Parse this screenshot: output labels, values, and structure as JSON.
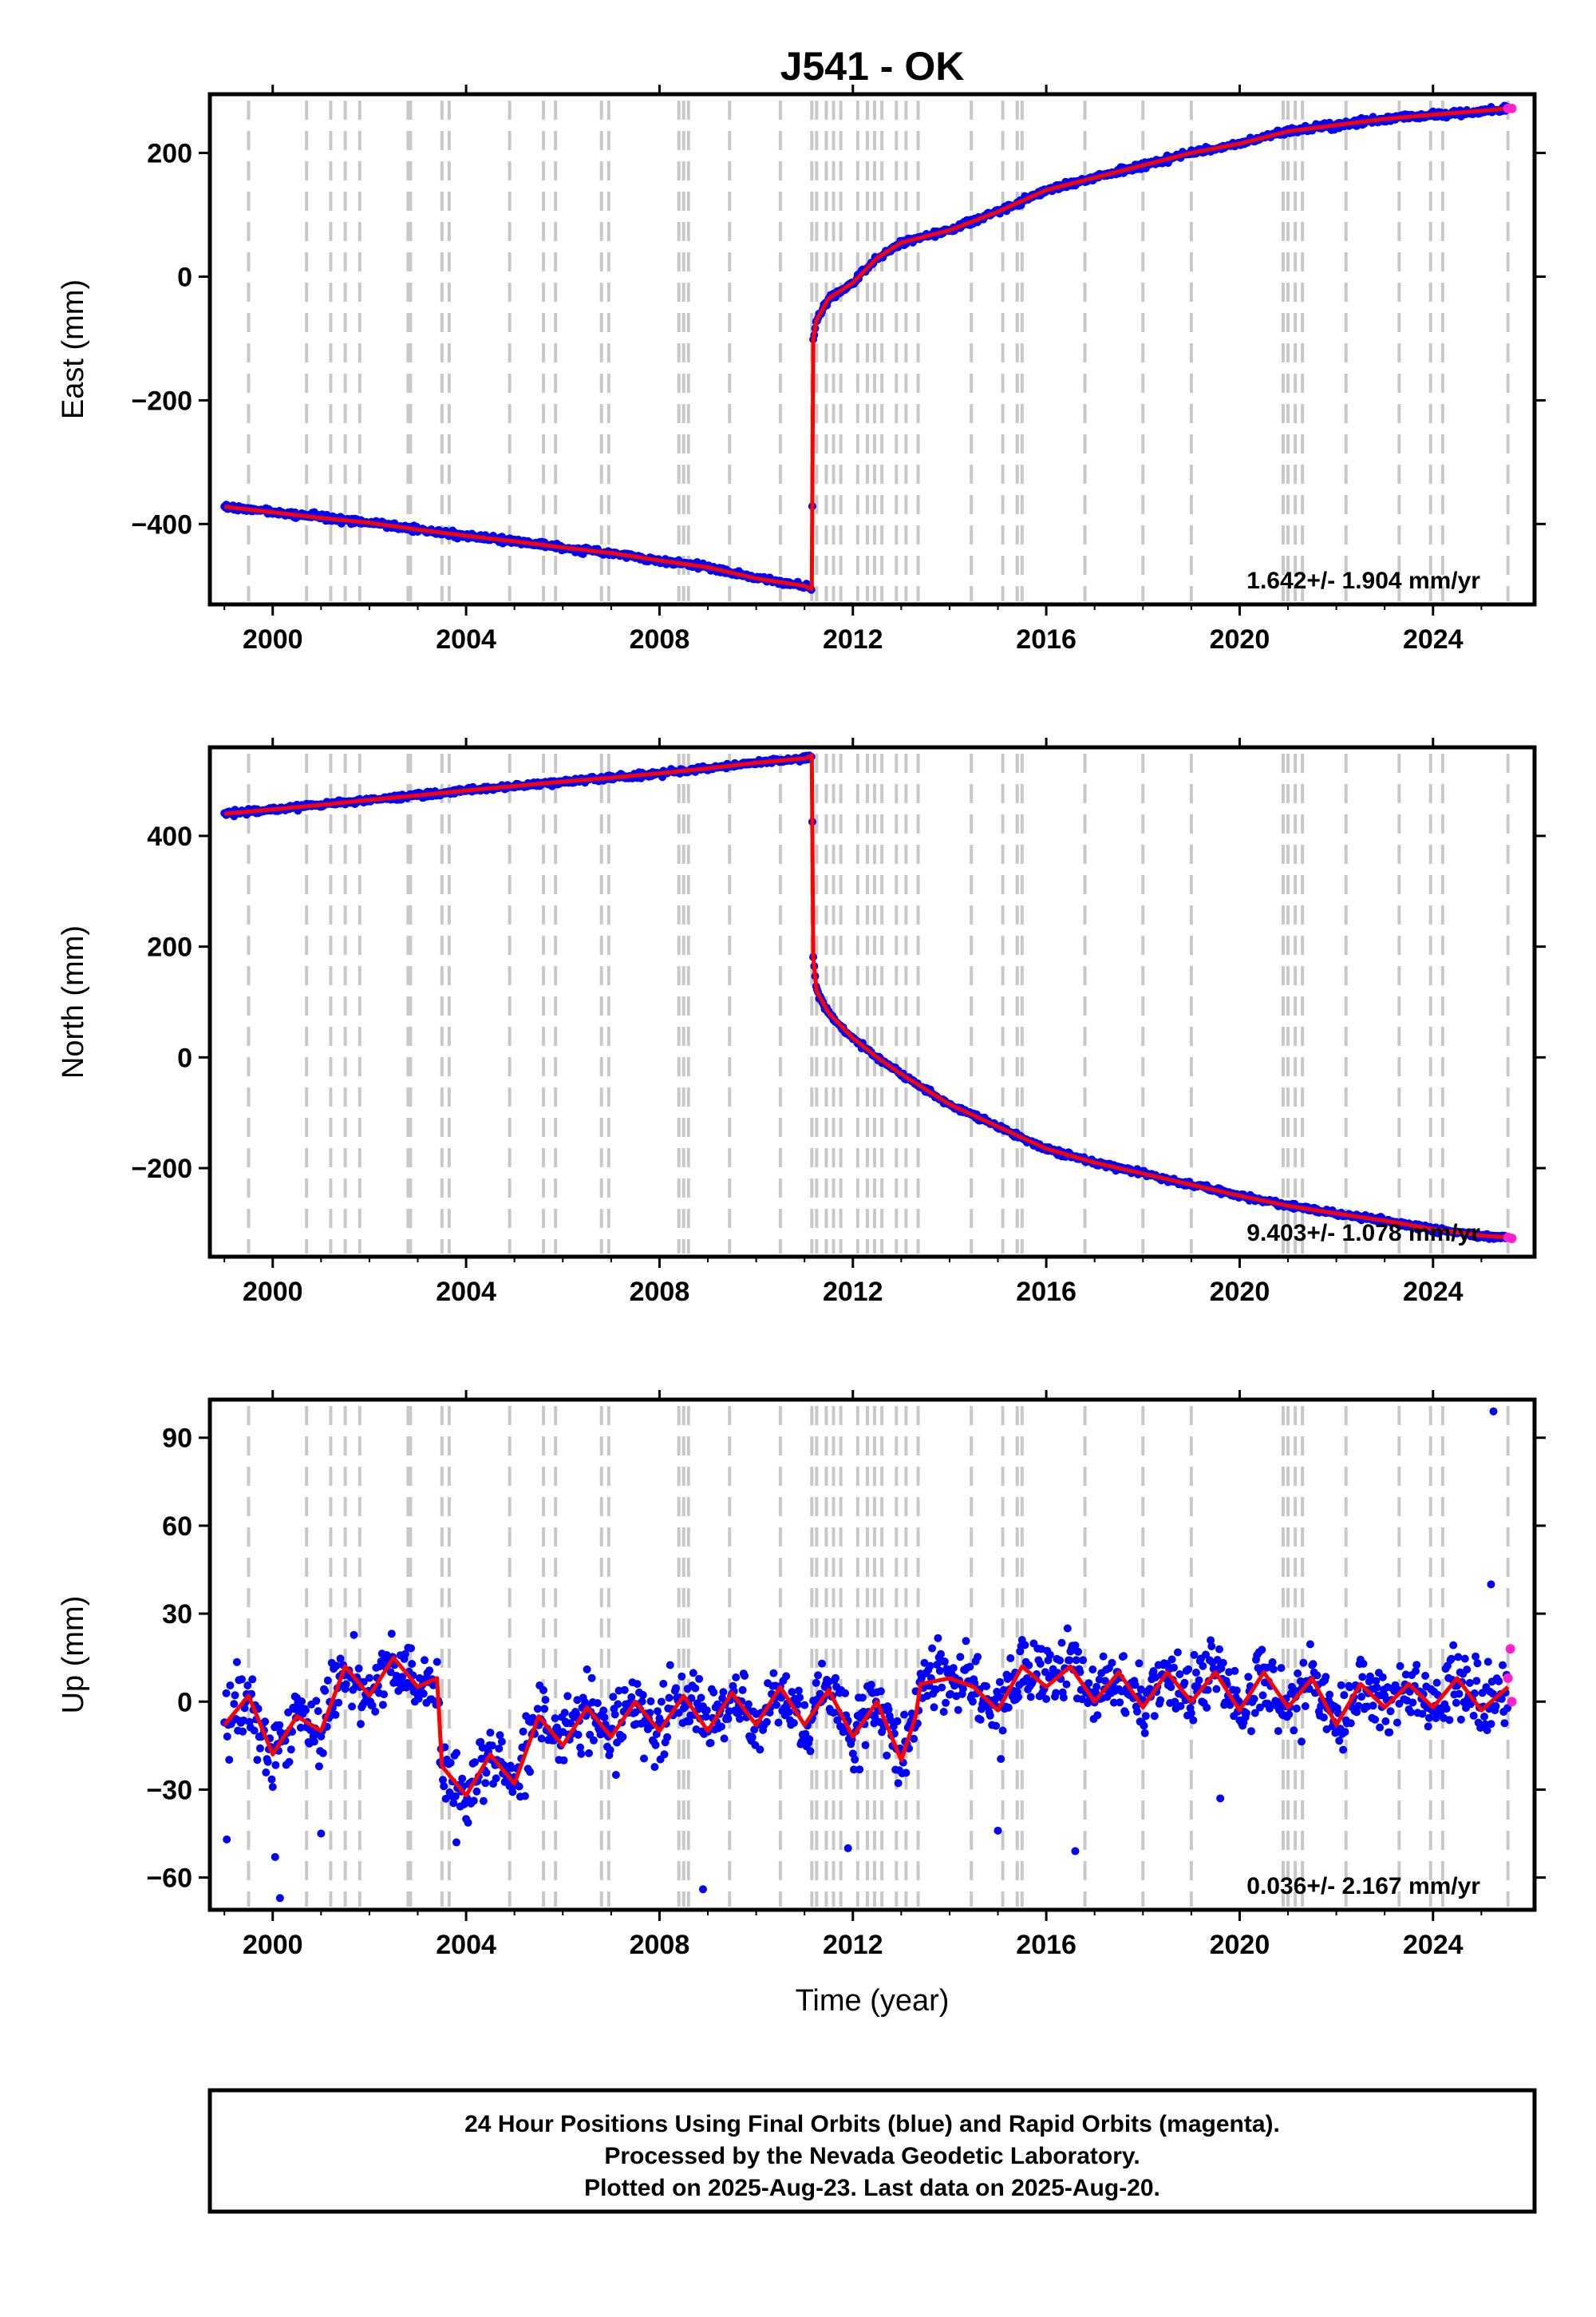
{
  "chart_data": {
    "type": "scatter",
    "title": "J541 - OK",
    "xlabel": "Time (year)",
    "xlim": [
      1998.7,
      2026.1
    ],
    "x_ticks": [
      2000,
      2004,
      2008,
      2012,
      2016,
      2020,
      2024
    ],
    "colors": {
      "final": "#0000ff",
      "rapid": "#ff22cc",
      "model": "#ff0000",
      "steps": "#c8c8c8"
    },
    "steps": [
      1999.5,
      2000.7,
      2001.2,
      2001.5,
      2001.8,
      2002.8,
      2002.85,
      2003.5,
      2003.65,
      2004.9,
      2005.6,
      2005.85,
      2006.8,
      2006.95,
      2008.4,
      2008.5,
      2008.6,
      2009.45,
      2010.5,
      2011.15,
      2011.25,
      2011.45,
      2011.6,
      2011.75,
      2012.1,
      2012.3,
      2012.45,
      2012.6,
      2012.9,
      2013.1,
      2013.35,
      2014.45,
      2015.1,
      2015.4,
      2015.5,
      2016.8,
      2018.0,
      2019.0,
      2020.9,
      2021.0,
      2021.15,
      2021.3,
      2022.2,
      2023.3,
      2023.95,
      2024.2,
      2025.55
    ],
    "panels": [
      {
        "ylabel": "East (mm)",
        "ylim": [
          -530,
          295
        ],
        "y_ticks": [
          -400,
          -200,
          0,
          200
        ],
        "y_tick_labels": [
          "−400",
          "−200",
          "0",
          "200"
        ],
        "rate": "1.642+/- 1.904 mm/yr",
        "series": [
          {
            "name": "Final Orbits",
            "x": [
              1999.0,
              2000.0,
              2001.0,
              2002.0,
              2003.0,
              2004.0,
              2005.0,
              2006.0,
              2007.0,
              2008.0,
              2009.0,
              2010.0,
              2011.0,
              2011.15,
              2011.18,
              2011.25,
              2011.5,
              2012.0,
              2012.5,
              2013.0,
              2014.0,
              2015.0,
              2016.0,
              2017.0,
              2018.0,
              2019.0,
              2020.0,
              2021.0,
              2022.0,
              2023.0,
              2024.0,
              2025.0,
              2025.55
            ],
            "y": [
              -372,
              -381,
              -390,
              -398,
              -409,
              -419,
              -428,
              -438,
              -447,
              -459,
              -470,
              -488,
              -500,
              -505,
              -100,
              -70,
              -35,
              -10,
              30,
              55,
              75,
              105,
              140,
              160,
              180,
              200,
              215,
              235,
              245,
              255,
              262,
              268,
              272
            ]
          },
          {
            "name": "Rapid Orbits",
            "x": [
              2025.55,
              2025.63
            ],
            "y": [
              272,
              272
            ]
          }
        ]
      },
      {
        "ylabel": "North (mm)",
        "ylim": [
          -360,
          560
        ],
        "y_ticks": [
          -200,
          0,
          200,
          400
        ],
        "y_tick_labels": [
          "−200",
          "0",
          "200",
          "400"
        ],
        "rate": "9.403+/- 1.078 mm/yr",
        "series": [
          {
            "name": "Final Orbits",
            "x": [
              1999.0,
              2000.0,
              2001.0,
              2002.0,
              2003.0,
              2004.0,
              2005.0,
              2006.0,
              2007.0,
              2008.0,
              2009.0,
              2010.0,
              2011.0,
              2011.15,
              2011.18,
              2011.25,
              2011.5,
              2012.0,
              2012.5,
              2013.0,
              2014.0,
              2015.0,
              2016.0,
              2017.0,
              2018.0,
              2019.0,
              2020.0,
              2021.0,
              2022.0,
              2023.0,
              2024.0,
              2025.0,
              2025.55
            ],
            "y": [
              440,
              448,
              456,
              465,
              473,
              482,
              490,
              498,
              505,
              513,
              522,
              532,
              540,
              545,
              180,
              120,
              80,
              35,
              0,
              -30,
              -85,
              -125,
              -165,
              -190,
              -210,
              -230,
              -250,
              -268,
              -282,
              -295,
              -310,
              -322,
              -325
            ]
          },
          {
            "name": "Rapid Orbits",
            "x": [
              2025.55,
              2025.63
            ],
            "y": [
              -325,
              -327
            ]
          }
        ]
      },
      {
        "ylabel": "Up (mm)",
        "ylim": [
          -71,
          103
        ],
        "y_ticks": [
          -60,
          -30,
          0,
          30,
          60,
          90
        ],
        "y_tick_labels": [
          "−60",
          "−30",
          "0",
          "30",
          "60",
          "90"
        ],
        "rate": "0.036+/- 2.167 mm/yr",
        "series": [
          {
            "name": "Final Orbits",
            "x": [
              1999.0,
              1999.5,
              2000.0,
              2000.5,
              2001.0,
              2001.5,
              2002.0,
              2002.5,
              2003.0,
              2003.4,
              2003.5,
              2004.0,
              2004.5,
              2005.0,
              2005.5,
              2006.0,
              2006.5,
              2007.0,
              2007.5,
              2008.0,
              2008.5,
              2009.0,
              2009.5,
              2010.0,
              2010.5,
              2011.0,
              2011.5,
              2012.0,
              2012.5,
              2013.0,
              2013.3,
              2013.4,
              2014.0,
              2014.5,
              2015.0,
              2015.5,
              2016.0,
              2016.5,
              2017.0,
              2017.5,
              2018.0,
              2018.5,
              2019.0,
              2019.5,
              2020.0,
              2020.5,
              2021.0,
              2021.5,
              2022.0,
              2022.5,
              2023.0,
              2023.5,
              2024.0,
              2024.5,
              2025.0,
              2025.55
            ],
            "y": [
              -8,
              2,
              -18,
              -5,
              -10,
              12,
              2,
              15,
              5,
              8,
              -22,
              -32,
              -18,
              -28,
              -5,
              -15,
              -2,
              -12,
              0,
              -10,
              2,
              -10,
              3,
              -8,
              5,
              -8,
              4,
              -12,
              0,
              -20,
              -5,
              6,
              8,
              5,
              -3,
              12,
              5,
              12,
              0,
              10,
              -2,
              10,
              0,
              10,
              -3,
              10,
              -2,
              8,
              -8,
              6,
              -2,
              6,
              -2,
              8,
              -3,
              5
            ]
          },
          {
            "name": "Rapid Orbits",
            "x": [
              2025.55,
              2025.6,
              2025.63
            ],
            "y": [
              8,
              18,
              0
            ]
          }
        ]
      }
    ],
    "caption": [
      "24 Hour Positions Using Final Orbits (blue) and Rapid Orbits (magenta).",
      "Processed by the Nevada Geodetic Laboratory.",
      "Plotted on 2025-Aug-23. Last data on 2025-Aug-20."
    ]
  }
}
